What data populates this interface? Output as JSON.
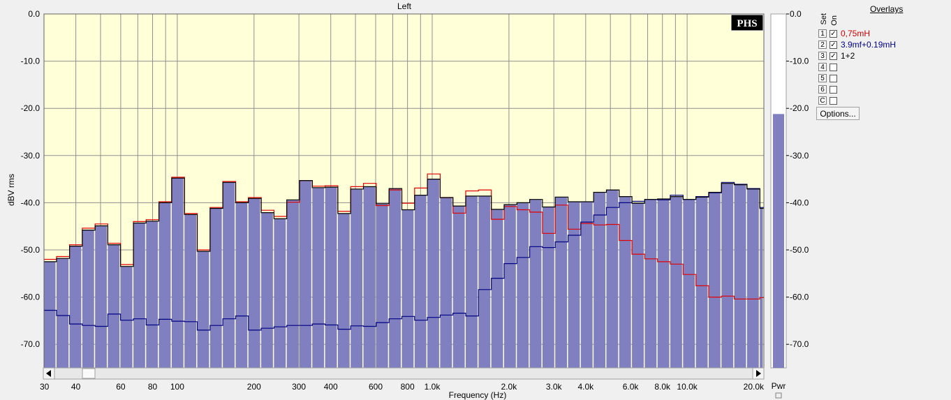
{
  "chart_data": {
    "type": "bar",
    "title": "Left",
    "xlabel": "Frequency (Hz)",
    "ylabel": "dBV rms",
    "x_scale": "log",
    "xlim": [
      30,
      20000
    ],
    "ylim": [
      -75,
      0
    ],
    "grid": true,
    "y_ticks": [
      "0.0",
      "-10.0",
      "-20.0",
      "-30.0",
      "-40.0",
      "-50.0",
      "-60.0",
      "-70.0"
    ],
    "y_tick_values": [
      0,
      -10,
      -20,
      -30,
      -40,
      -50,
      -60,
      -70
    ],
    "x_ticks": [
      "30",
      "40",
      "60",
      "80",
      "100",
      "200",
      "300",
      "400",
      "600",
      "800",
      "1.0k",
      "2.0k",
      "3.0k",
      "4.0k",
      "6.0k",
      "8.0k",
      "10.0k",
      "20.0k"
    ],
    "x_tick_values": [
      30,
      40,
      60,
      80,
      100,
      200,
      300,
      400,
      600,
      800,
      1000,
      2000,
      3000,
      4000,
      6000,
      8000,
      10000,
      20000
    ],
    "band_edges": [
      30,
      33.6,
      37.8,
      42.4,
      47.6,
      53.4,
      59.9,
      67.3,
      75.5,
      84.7,
      95.1,
      106.7,
      119.8,
      134.5,
      150.9,
      169.4,
      190.1,
      213.4,
      239.5,
      268.8,
      301.7,
      338.6,
      380.1,
      426.6,
      478.8,
      537.4,
      603.2,
      677.1,
      760.0,
      853.0,
      957.4,
      1074.6,
      1206.2,
      1353.9,
      1519.6,
      1705.6,
      1914.4,
      2148.8,
      2411.9,
      2707.2,
      3038.6,
      3410.6,
      3828.2,
      4296.8,
      4822.9,
      5413.3,
      6076.1,
      6820.0,
      7654.9,
      8592.0,
      9643.9,
      10824.5,
      12149.7,
      13637.1,
      15306.6,
      17180.5,
      19283.8,
      20000
    ],
    "series": [
      {
        "name": "1+2",
        "values": [
          -52.5,
          -51.8,
          -49.2,
          -45.8,
          -44.9,
          -48.9,
          -53.5,
          -44.3,
          -43.9,
          -40.0,
          -34.8,
          -42.5,
          -50.3,
          -41.2,
          -35.7,
          -40.0,
          -39.1,
          -42.1,
          -43.4,
          -39.4,
          -35.3,
          -36.8,
          -36.7,
          -42.3,
          -37.1,
          -36.6,
          -40.2,
          -37.0,
          -41.5,
          -38.4,
          -35.0,
          -38.9,
          -40.7,
          -38.6,
          -38.6,
          -41.4,
          -40.4,
          -40.0,
          -39.3,
          -40.9,
          -38.8,
          -39.8,
          -39.8,
          -37.8,
          -37.3,
          -38.7,
          -40.1,
          -39.3,
          -39.2,
          -38.7,
          -39.3,
          -38.8,
          -37.8,
          -35.9,
          -36.2,
          -37.1,
          -41.2
        ]
      },
      {
        "name": "0,75mH",
        "values": [
          -52.0,
          -51.4,
          -48.9,
          -45.4,
          -44.5,
          -48.6,
          -53.1,
          -44.0,
          -43.6,
          -39.8,
          -34.6,
          -42.3,
          -50.0,
          -41.0,
          -35.5,
          -39.8,
          -38.9,
          -41.6,
          -42.9,
          -39.9,
          -35.3,
          -36.5,
          -36.4,
          -41.8,
          -36.6,
          -35.9,
          -40.6,
          -37.3,
          -40.1,
          -36.9,
          -33.9,
          -38.9,
          -42.2,
          -37.5,
          -37.3,
          -43.5,
          -40.8,
          -41.5,
          -42.0,
          -46.5,
          -40.5,
          -45.6,
          -44.4,
          -44.7,
          -44.6,
          -48.0,
          -50.9,
          -51.9,
          -52.5,
          -53.0,
          -55.2,
          -57.6,
          -60.0,
          -59.8,
          -60.4,
          -60.4,
          -60.1
        ]
      },
      {
        "name": "3.9mf+0.19mH",
        "values": [
          -62.8,
          -63.9,
          -65.7,
          -66.0,
          -66.2,
          -63.6,
          -64.9,
          -64.6,
          -65.9,
          -64.7,
          -65.1,
          -65.2,
          -67.0,
          -66.0,
          -64.6,
          -64.0,
          -67.0,
          -66.6,
          -66.3,
          -66.0,
          -66.0,
          -65.7,
          -65.9,
          -66.8,
          -66.1,
          -66.2,
          -65.4,
          -64.6,
          -64.1,
          -64.9,
          -64.3,
          -63.8,
          -63.4,
          -64.0,
          -58.4,
          -56.0,
          -52.9,
          -51.6,
          -49.3,
          -49.5,
          -48.3,
          -46.9,
          -44.1,
          -42.6,
          -41.0,
          -40.0,
          -39.7,
          -39.3,
          -39.4,
          -38.4,
          -39.3,
          -38.7,
          -37.9,
          -35.7,
          -36.1,
          -37.0,
          -41.0
        ]
      }
    ],
    "power_meter": {
      "label": "Pwr",
      "value": -21.2
    },
    "fill_color": "#8080c0",
    "plot_bg": "#ffffd8",
    "series_colors": {
      "1+2": "#000000",
      "0,75mH": "#e00000",
      "3.9mf+0.19mH": "#000080"
    }
  },
  "overlays": {
    "title": "Overlays",
    "col_set": "Set",
    "col_on": "On",
    "options_label": "Options...",
    "rows": [
      {
        "slot": "1",
        "checked": true,
        "label": "0,75mH",
        "color": "#cc0000"
      },
      {
        "slot": "2",
        "checked": true,
        "label": "3.9mf+0.19mH",
        "color": "#000080"
      },
      {
        "slot": "3",
        "checked": true,
        "label": "1+2",
        "color": "#000000"
      },
      {
        "slot": "4",
        "checked": false,
        "label": "",
        "color": "#000000"
      },
      {
        "slot": "5",
        "checked": false,
        "label": "",
        "color": "#000000"
      },
      {
        "slot": "6",
        "checked": false,
        "label": "",
        "color": "#000000"
      },
      {
        "slot": "C",
        "checked": false,
        "label": "",
        "color": "#000000"
      }
    ]
  },
  "logo_text": "PHS"
}
